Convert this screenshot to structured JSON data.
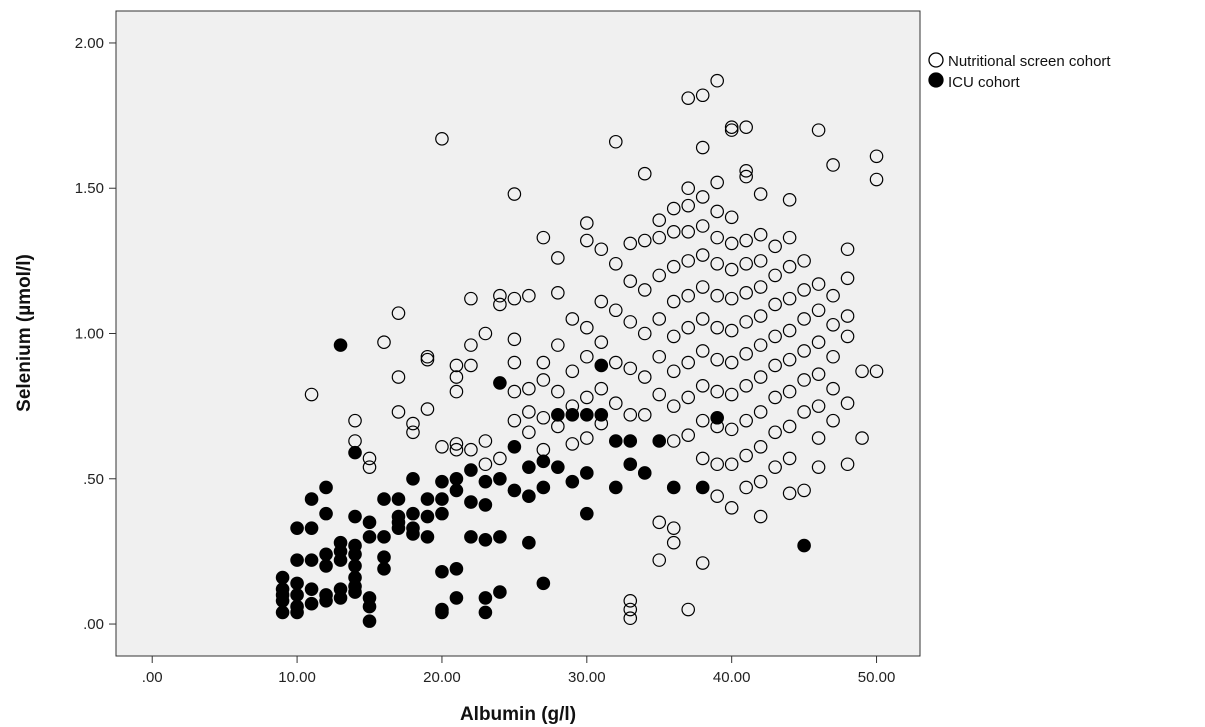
{
  "chart_data": {
    "type": "scatter",
    "xlabel": "Albumin (g/l)",
    "ylabel": "Selenium (µmol/l)",
    "xlim": [
      -2.5,
      53
    ],
    "ylim": [
      -0.11,
      2.11
    ],
    "x_ticks": [
      0,
      10,
      20,
      30,
      40,
      50
    ],
    "x_tick_labels": [
      ".00",
      "10.00",
      "20.00",
      "30.00",
      "40.00",
      "50.00"
    ],
    "y_ticks": [
      0,
      0.5,
      1.0,
      1.5,
      2.0
    ],
    "y_tick_labels": [
      ".00",
      ".50",
      "1.00",
      "1.50",
      "2.00"
    ],
    "grid": false,
    "legend_position": "right-top outside",
    "plot_background": "#f0f0f0",
    "series": [
      {
        "name": "Nutritional screen cohort",
        "marker": "open-circle",
        "color": "#000000",
        "points": [
          [
            11,
            0.79
          ],
          [
            14,
            0.7
          ],
          [
            14,
            0.63
          ],
          [
            15,
            0.57
          ],
          [
            15,
            0.54
          ],
          [
            16,
            0.97
          ],
          [
            17,
            1.07
          ],
          [
            17,
            0.85
          ],
          [
            17,
            0.73
          ],
          [
            18,
            0.69
          ],
          [
            18,
            0.66
          ],
          [
            19,
            0.92
          ],
          [
            19,
            0.91
          ],
          [
            19,
            0.74
          ],
          [
            20,
            1.67
          ],
          [
            20,
            0.61
          ],
          [
            21,
            0.89
          ],
          [
            21,
            0.85
          ],
          [
            21,
            0.8
          ],
          [
            21,
            0.62
          ],
          [
            21,
            0.6
          ],
          [
            22,
            1.12
          ],
          [
            22,
            0.96
          ],
          [
            22,
            0.89
          ],
          [
            22,
            0.6
          ],
          [
            23,
            1.0
          ],
          [
            23,
            0.63
          ],
          [
            23,
            0.55
          ],
          [
            24,
            1.13
          ],
          [
            24,
            1.1
          ],
          [
            24,
            0.57
          ],
          [
            25,
            1.48
          ],
          [
            25,
            1.12
          ],
          [
            25,
            0.98
          ],
          [
            25,
            0.9
          ],
          [
            25,
            0.8
          ],
          [
            25,
            0.7
          ],
          [
            26,
            1.13
          ],
          [
            26,
            0.81
          ],
          [
            26,
            0.73
          ],
          [
            26,
            0.66
          ],
          [
            27,
            1.33
          ],
          [
            27,
            0.9
          ],
          [
            27,
            0.84
          ],
          [
            27,
            0.71
          ],
          [
            27,
            0.6
          ],
          [
            28,
            1.26
          ],
          [
            28,
            1.14
          ],
          [
            28,
            0.96
          ],
          [
            28,
            0.8
          ],
          [
            28,
            0.68
          ],
          [
            29,
            1.05
          ],
          [
            29,
            0.87
          ],
          [
            29,
            0.75
          ],
          [
            29,
            0.62
          ],
          [
            30,
            1.38
          ],
          [
            30,
            1.32
          ],
          [
            30,
            1.02
          ],
          [
            30,
            0.92
          ],
          [
            30,
            0.78
          ],
          [
            30,
            0.64
          ],
          [
            31,
            1.29
          ],
          [
            31,
            1.11
          ],
          [
            31,
            0.97
          ],
          [
            31,
            0.81
          ],
          [
            31,
            0.69
          ],
          [
            32,
            1.66
          ],
          [
            32,
            1.24
          ],
          [
            32,
            1.08
          ],
          [
            32,
            0.9
          ],
          [
            32,
            0.76
          ],
          [
            33,
            1.31
          ],
          [
            33,
            1.18
          ],
          [
            33,
            1.04
          ],
          [
            33,
            0.88
          ],
          [
            33,
            0.72
          ],
          [
            33,
            0.08
          ],
          [
            33,
            0.05
          ],
          [
            33,
            0.02
          ],
          [
            34,
            1.55
          ],
          [
            34,
            1.32
          ],
          [
            34,
            1.15
          ],
          [
            34,
            1.0
          ],
          [
            34,
            0.85
          ],
          [
            34,
            0.72
          ],
          [
            35,
            1.39
          ],
          [
            35,
            1.33
          ],
          [
            35,
            1.2
          ],
          [
            35,
            1.05
          ],
          [
            35,
            0.92
          ],
          [
            35,
            0.79
          ],
          [
            35,
            0.35
          ],
          [
            35,
            0.22
          ],
          [
            36,
            1.43
          ],
          [
            36,
            1.35
          ],
          [
            36,
            1.23
          ],
          [
            36,
            1.11
          ],
          [
            36,
            0.99
          ],
          [
            36,
            0.87
          ],
          [
            36,
            0.75
          ],
          [
            36,
            0.63
          ],
          [
            36,
            0.33
          ],
          [
            36,
            0.28
          ],
          [
            37,
            1.81
          ],
          [
            37,
            1.5
          ],
          [
            37,
            1.44
          ],
          [
            37,
            1.35
          ],
          [
            37,
            1.25
          ],
          [
            37,
            1.13
          ],
          [
            37,
            1.02
          ],
          [
            37,
            0.9
          ],
          [
            37,
            0.78
          ],
          [
            37,
            0.65
          ],
          [
            37,
            0.05
          ],
          [
            38,
            1.82
          ],
          [
            38,
            1.64
          ],
          [
            38,
            1.47
          ],
          [
            38,
            1.37
          ],
          [
            38,
            1.27
          ],
          [
            38,
            1.16
          ],
          [
            38,
            1.05
          ],
          [
            38,
            0.94
          ],
          [
            38,
            0.82
          ],
          [
            38,
            0.7
          ],
          [
            38,
            0.57
          ],
          [
            38,
            0.21
          ],
          [
            39,
            1.87
          ],
          [
            39,
            1.52
          ],
          [
            39,
            1.42
          ],
          [
            39,
            1.33
          ],
          [
            39,
            1.24
          ],
          [
            39,
            1.13
          ],
          [
            39,
            1.02
          ],
          [
            39,
            0.91
          ],
          [
            39,
            0.8
          ],
          [
            39,
            0.68
          ],
          [
            39,
            0.55
          ],
          [
            39,
            0.44
          ],
          [
            40,
            1.71
          ],
          [
            40,
            1.7
          ],
          [
            40,
            1.4
          ],
          [
            40,
            1.31
          ],
          [
            40,
            1.22
          ],
          [
            40,
            1.12
          ],
          [
            40,
            1.01
          ],
          [
            40,
            0.9
          ],
          [
            40,
            0.79
          ],
          [
            40,
            0.67
          ],
          [
            40,
            0.55
          ],
          [
            40,
            0.4
          ],
          [
            41,
            1.71
          ],
          [
            41,
            1.56
          ],
          [
            41,
            1.54
          ],
          [
            41,
            1.32
          ],
          [
            41,
            1.24
          ],
          [
            41,
            1.14
          ],
          [
            41,
            1.04
          ],
          [
            41,
            0.93
          ],
          [
            41,
            0.82
          ],
          [
            41,
            0.7
          ],
          [
            41,
            0.58
          ],
          [
            41,
            0.47
          ],
          [
            42,
            1.48
          ],
          [
            42,
            1.34
          ],
          [
            42,
            1.25
          ],
          [
            42,
            1.16
          ],
          [
            42,
            1.06
          ],
          [
            42,
            0.96
          ],
          [
            42,
            0.85
          ],
          [
            42,
            0.73
          ],
          [
            42,
            0.61
          ],
          [
            42,
            0.49
          ],
          [
            42,
            0.37
          ],
          [
            43,
            1.3
          ],
          [
            43,
            1.2
          ],
          [
            43,
            1.1
          ],
          [
            43,
            0.99
          ],
          [
            43,
            0.89
          ],
          [
            43,
            0.78
          ],
          [
            43,
            0.66
          ],
          [
            43,
            0.54
          ],
          [
            44,
            1.46
          ],
          [
            44,
            1.33
          ],
          [
            44,
            1.23
          ],
          [
            44,
            1.12
          ],
          [
            44,
            1.01
          ],
          [
            44,
            0.91
          ],
          [
            44,
            0.8
          ],
          [
            44,
            0.68
          ],
          [
            44,
            0.57
          ],
          [
            44,
            0.45
          ],
          [
            45,
            1.25
          ],
          [
            45,
            1.15
          ],
          [
            45,
            1.05
          ],
          [
            45,
            0.94
          ],
          [
            45,
            0.84
          ],
          [
            45,
            0.73
          ],
          [
            45,
            0.46
          ],
          [
            46,
            1.7
          ],
          [
            46,
            1.17
          ],
          [
            46,
            1.08
          ],
          [
            46,
            0.97
          ],
          [
            46,
            0.86
          ],
          [
            46,
            0.75
          ],
          [
            46,
            0.64
          ],
          [
            46,
            0.54
          ],
          [
            47,
            1.58
          ],
          [
            47,
            1.13
          ],
          [
            47,
            1.03
          ],
          [
            47,
            0.92
          ],
          [
            47,
            0.81
          ],
          [
            47,
            0.7
          ],
          [
            48,
            1.29
          ],
          [
            48,
            1.19
          ],
          [
            48,
            1.06
          ],
          [
            48,
            0.99
          ],
          [
            48,
            0.76
          ],
          [
            48,
            0.55
          ],
          [
            49,
            0.87
          ],
          [
            49,
            0.64
          ],
          [
            50,
            1.61
          ],
          [
            50,
            1.53
          ],
          [
            50,
            0.87
          ]
        ]
      },
      {
        "name": "ICU cohort",
        "marker": "filled-circle",
        "color": "#000000",
        "points": [
          [
            9,
            0.16
          ],
          [
            9,
            0.12
          ],
          [
            9,
            0.1
          ],
          [
            9,
            0.08
          ],
          [
            9,
            0.04
          ],
          [
            10,
            0.33
          ],
          [
            10,
            0.22
          ],
          [
            10,
            0.14
          ],
          [
            10,
            0.1
          ],
          [
            10,
            0.06
          ],
          [
            10,
            0.04
          ],
          [
            11,
            0.43
          ],
          [
            11,
            0.33
          ],
          [
            11,
            0.22
          ],
          [
            11,
            0.12
          ],
          [
            11,
            0.07
          ],
          [
            12,
            0.47
          ],
          [
            12,
            0.38
          ],
          [
            12,
            0.24
          ],
          [
            12,
            0.2
          ],
          [
            12,
            0.1
          ],
          [
            12,
            0.08
          ],
          [
            13,
            0.96
          ],
          [
            13,
            0.28
          ],
          [
            13,
            0.25
          ],
          [
            13,
            0.22
          ],
          [
            13,
            0.12
          ],
          [
            13,
            0.09
          ],
          [
            14,
            0.59
          ],
          [
            14,
            0.37
          ],
          [
            14,
            0.27
          ],
          [
            14,
            0.24
          ],
          [
            14,
            0.2
          ],
          [
            14,
            0.16
          ],
          [
            14,
            0.13
          ],
          [
            14,
            0.11
          ],
          [
            15,
            0.35
          ],
          [
            15,
            0.3
          ],
          [
            15,
            0.09
          ],
          [
            15,
            0.06
          ],
          [
            15,
            0.01
          ],
          [
            16,
            0.43
          ],
          [
            16,
            0.3
          ],
          [
            16,
            0.23
          ],
          [
            16,
            0.19
          ],
          [
            17,
            0.43
          ],
          [
            17,
            0.37
          ],
          [
            17,
            0.35
          ],
          [
            17,
            0.33
          ],
          [
            18,
            0.5
          ],
          [
            18,
            0.38
          ],
          [
            18,
            0.33
          ],
          [
            18,
            0.31
          ],
          [
            19,
            0.43
          ],
          [
            19,
            0.37
          ],
          [
            19,
            0.3
          ],
          [
            20,
            0.49
          ],
          [
            20,
            0.43
          ],
          [
            20,
            0.38
          ],
          [
            20,
            0.18
          ],
          [
            20,
            0.05
          ],
          [
            20,
            0.04
          ],
          [
            21,
            0.5
          ],
          [
            21,
            0.46
          ],
          [
            21,
            0.19
          ],
          [
            21,
            0.09
          ],
          [
            22,
            0.53
          ],
          [
            22,
            0.42
          ],
          [
            22,
            0.3
          ],
          [
            23,
            0.49
          ],
          [
            23,
            0.41
          ],
          [
            23,
            0.29
          ],
          [
            23,
            0.09
          ],
          [
            23,
            0.04
          ],
          [
            24,
            0.83
          ],
          [
            24,
            0.5
          ],
          [
            24,
            0.3
          ],
          [
            24,
            0.11
          ],
          [
            25,
            0.61
          ],
          [
            25,
            0.46
          ],
          [
            26,
            0.54
          ],
          [
            26,
            0.44
          ],
          [
            26,
            0.28
          ],
          [
            27,
            0.56
          ],
          [
            27,
            0.47
          ],
          [
            27,
            0.14
          ],
          [
            28,
            0.72
          ],
          [
            28,
            0.54
          ],
          [
            29,
            0.72
          ],
          [
            29,
            0.49
          ],
          [
            30,
            0.72
          ],
          [
            30,
            0.52
          ],
          [
            30,
            0.38
          ],
          [
            31,
            0.89
          ],
          [
            31,
            0.72
          ],
          [
            32,
            0.63
          ],
          [
            32,
            0.47
          ],
          [
            33,
            0.63
          ],
          [
            33,
            0.55
          ],
          [
            34,
            0.52
          ],
          [
            35,
            0.63
          ],
          [
            36,
            0.47
          ],
          [
            38,
            0.47
          ],
          [
            39,
            0.71
          ],
          [
            45,
            0.27
          ]
        ]
      }
    ]
  }
}
